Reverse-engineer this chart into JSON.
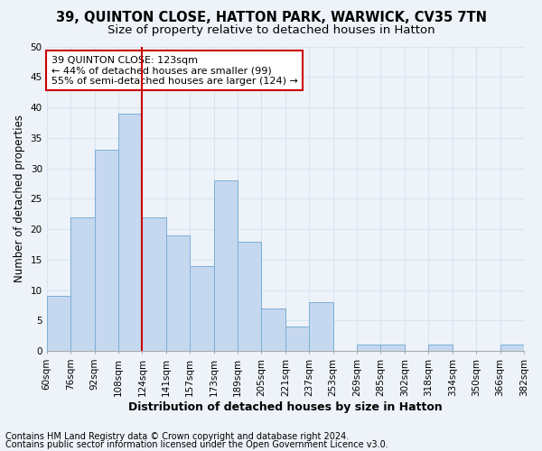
{
  "title1": "39, QUINTON CLOSE, HATTON PARK, WARWICK, CV35 7TN",
  "title2": "Size of property relative to detached houses in Hatton",
  "xlabel": "Distribution of detached houses by size in Hatton",
  "ylabel": "Number of detached properties",
  "bin_labels": [
    "60sqm",
    "76sqm",
    "92sqm",
    "108sqm",
    "124sqm",
    "141sqm",
    "157sqm",
    "173sqm",
    "189sqm",
    "205sqm",
    "221sqm",
    "237sqm",
    "253sqm",
    "269sqm",
    "285sqm",
    "302sqm",
    "318sqm",
    "334sqm",
    "350sqm",
    "366sqm",
    "382sqm"
  ],
  "values": [
    9,
    22,
    33,
    39,
    22,
    19,
    14,
    28,
    18,
    7,
    4,
    8,
    0,
    1,
    1,
    0,
    1,
    0,
    0,
    1
  ],
  "bar_color": "#c5d8f0",
  "bar_edge_color": "#7bafd4",
  "subject_line_color": "#cc0000",
  "subject_line_index": 3,
  "annotation_text": "39 QUINTON CLOSE: 123sqm\n← 44% of detached houses are smaller (99)\n55% of semi-detached houses are larger (124) →",
  "annotation_box_facecolor": "#ffffff",
  "annotation_box_edgecolor": "#cc0000",
  "footnote1": "Contains HM Land Registry data © Crown copyright and database right 2024.",
  "footnote2": "Contains public sector information licensed under the Open Government Licence v3.0.",
  "ylim": [
    0,
    50
  ],
  "yticks": [
    0,
    5,
    10,
    15,
    20,
    25,
    30,
    35,
    40,
    45,
    50
  ],
  "bg_color": "#eef2f9",
  "grid_color": "#d8e4f0",
  "title1_fontsize": 10.5,
  "title2_fontsize": 9.5,
  "xlabel_fontsize": 9,
  "ylabel_fontsize": 8.5,
  "tick_fontsize": 7.5,
  "annotation_fontsize": 8,
  "footnote_fontsize": 7
}
